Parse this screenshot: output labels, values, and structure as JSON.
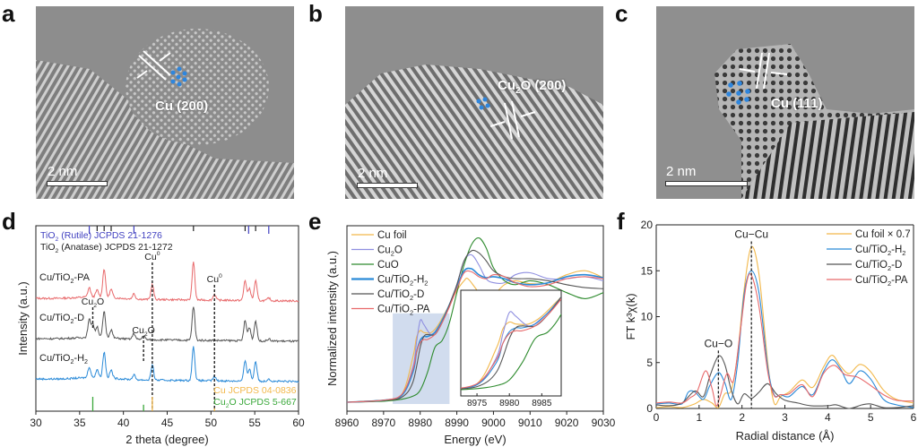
{
  "figure": {
    "panels": {
      "a": {
        "letter": "a",
        "annotation": "Cu (200)",
        "scale_bar": "2 nm",
        "lattice_dots_color": "#2e86de"
      },
      "b": {
        "letter": "b",
        "annotation_main": "Cu",
        "annotation_sub": "2",
        "annotation_tail": "O (200)",
        "scale_bar": "2 nm",
        "lattice_dots_color": "#2e86de"
      },
      "c": {
        "letter": "c",
        "annotation": "Cu (111)",
        "scale_bar": "2 nm",
        "lattice_dots_color": "#2e86de"
      },
      "d": {
        "letter": "d"
      },
      "e": {
        "letter": "e"
      },
      "f": {
        "letter": "f"
      }
    }
  },
  "chart_data": [
    {
      "id": "d",
      "type": "line",
      "title": "",
      "xlabel": "2 theta (degree)",
      "ylabel": "Intensity (a.u.)",
      "xlim": [
        30,
        60
      ],
      "xticks": [
        30,
        35,
        40,
        45,
        50,
        55,
        60
      ],
      "reference_header": [
        {
          "text": "TiO",
          "sub": "2",
          "tail": " (Rutile)  JCPDS 21-1276",
          "color": "#4040c0"
        },
        {
          "text": "TiO",
          "sub": "2",
          "tail": " (Anatase) JCPDS 21-1272",
          "color": "#222222"
        }
      ],
      "rutile_ticks": [
        36.1,
        41.2,
        54.3,
        56.6
      ],
      "anatase_ticks": [
        37.0,
        37.8,
        38.6,
        48.0,
        53.9,
        55.1
      ],
      "series": [
        {
          "name": "Cu/TiO2-PA",
          "label": "Cu/TiO",
          "sub": "2",
          "tail": "-PA",
          "color": "#e8696b",
          "offset": 2.0,
          "peaks": [
            [
              36.1,
              0.35
            ],
            [
              37.0,
              0.25
            ],
            [
              37.8,
              1.05
            ],
            [
              38.6,
              0.3
            ],
            [
              41.2,
              0.2
            ],
            [
              43.3,
              0.55
            ],
            [
              48.0,
              1.4
            ],
            [
              50.4,
              0.22
            ],
            [
              53.9,
              0.75
            ],
            [
              54.4,
              0.45
            ],
            [
              55.1,
              0.75
            ],
            [
              56.6,
              0.1
            ]
          ]
        },
        {
          "name": "Cu/TiO2-D",
          "label": "Cu/TiO",
          "sub": "2",
          "tail": "-D",
          "color": "#555555",
          "offset": 1.0,
          "peaks": [
            [
              36.1,
              0.65
            ],
            [
              36.5,
              0.5
            ],
            [
              37.0,
              0.4
            ],
            [
              37.8,
              0.95
            ],
            [
              38.6,
              0.3
            ],
            [
              41.2,
              0.22
            ],
            [
              42.3,
              0.15
            ],
            [
              48.0,
              1.25
            ],
            [
              53.9,
              0.75
            ],
            [
              54.4,
              0.5
            ],
            [
              55.1,
              0.75
            ],
            [
              56.6,
              0.08
            ]
          ]
        },
        {
          "name": "Cu/TiO2-H2",
          "label": "Cu/TiO",
          "sub": "2",
          "tail": "-H",
          "sub2": "2",
          "color": "#2a8ad8",
          "offset": 0.0,
          "peaks": [
            [
              36.1,
              0.4
            ],
            [
              37.0,
              0.3
            ],
            [
              37.8,
              0.95
            ],
            [
              38.6,
              0.3
            ],
            [
              41.2,
              0.18
            ],
            [
              43.3,
              0.55
            ],
            [
              48.0,
              1.25
            ],
            [
              50.4,
              0.15
            ],
            [
              53.9,
              0.75
            ],
            [
              54.4,
              0.45
            ],
            [
              55.1,
              0.75
            ],
            [
              56.6,
              0.1
            ]
          ]
        }
      ],
      "annotations": [
        {
          "text": "Cu",
          "sup": "0",
          "x": 43.3
        },
        {
          "text": "Cu",
          "sup": "0",
          "x": 50.4
        },
        {
          "text": "Cu",
          "sub": "2",
          "tail": "O",
          "x": 36.5
        },
        {
          "text": "Cu",
          "sub": "2",
          "tail": "O",
          "x": 42.3
        }
      ],
      "reference_lines": [
        {
          "name": "Cu JCPDS 04-0836",
          "label": "Cu JCPDS 04-0836",
          "color": "#f2b84b",
          "positions": [
            43.3,
            50.4
          ],
          "heights": [
            1.0,
            0.2
          ]
        },
        {
          "name": "Cu2O JCPDS 5-667",
          "label": "Cu",
          "sub": "2",
          "tail": "O JCPDS 5-667",
          "color": "#3aa83a",
          "positions": [
            36.5,
            42.3
          ],
          "heights": [
            1.0,
            0.45
          ]
        }
      ]
    },
    {
      "id": "e",
      "type": "line",
      "title": "",
      "xlabel": "Energy (eV)",
      "ylabel": "Normalized intensity (a.u.)",
      "xlim": [
        8960,
        9030
      ],
      "xticks": [
        8960,
        8970,
        8980,
        8990,
        9000,
        9010,
        9020,
        9030
      ],
      "ylim": [
        -0.05,
        1.7
      ],
      "legend": "top-left",
      "highlight_box": [
        8972.5,
        8988,
        "#c5d3ea"
      ],
      "series": [
        {
          "name": "Cu foil",
          "label": "Cu foil",
          "color": "#f2b84b",
          "x": [
            8960,
            8970,
            8975,
            8978,
            8979,
            8980,
            8981,
            8983,
            8985,
            8988,
            8990,
            8992,
            8993,
            8995,
            8997,
            9000,
            9003,
            9006,
            9010,
            9015,
            9020,
            9025,
            9030
          ],
          "y": [
            0.0,
            0.02,
            0.08,
            0.45,
            0.65,
            0.72,
            0.7,
            0.7,
            0.78,
            0.98,
            1.12,
            1.22,
            1.24,
            1.15,
            1.06,
            1.08,
            1.18,
            1.22,
            1.19,
            1.2,
            1.28,
            1.32,
            1.25
          ]
        },
        {
          "name": "Cu2O",
          "label": "Cu",
          "sub": "2",
          "tail": "O",
          "color": "#8f8fe0",
          "x": [
            8960,
            8970,
            8975,
            8978,
            8979,
            8980,
            8981,
            8983,
            8985,
            8988,
            8990,
            8992,
            8994,
            8996,
            8998,
            9000,
            9003,
            9006,
            9010,
            9015,
            9020,
            9025,
            9030
          ],
          "y": [
            0.0,
            0.02,
            0.07,
            0.35,
            0.6,
            0.82,
            0.78,
            0.68,
            0.76,
            0.96,
            1.18,
            1.42,
            1.48,
            1.38,
            1.24,
            1.2,
            1.2,
            1.28,
            1.3,
            1.24,
            1.24,
            1.26,
            1.22
          ]
        },
        {
          "name": "CuO",
          "label": "CuO",
          "color": "#2e8b2e",
          "x": [
            8960,
            8970,
            8975,
            8978,
            8980,
            8982,
            8984,
            8986,
            8988,
            8990,
            8992,
            8994,
            8996,
            8998,
            9000,
            9003,
            9006,
            9010,
            9015,
            9020,
            9025,
            9030
          ],
          "y": [
            0.0,
            0.01,
            0.03,
            0.06,
            0.12,
            0.3,
            0.55,
            0.62,
            0.8,
            1.1,
            1.38,
            1.58,
            1.65,
            1.55,
            1.35,
            1.22,
            1.18,
            1.22,
            1.18,
            1.1,
            1.04,
            1.1
          ]
        },
        {
          "name": "Cu/TiO2-H2",
          "label": "Cu/TiO",
          "sub": "2",
          "tail": "-H",
          "sub2": "2",
          "color": "#2a8ad8",
          "x": [
            8960,
            8970,
            8975,
            8978,
            8979,
            8980,
            8981,
            8982,
            8984,
            8986,
            8988,
            8990,
            8992,
            8994,
            8996,
            8998,
            9000,
            9003,
            9006,
            9010,
            9015,
            9020,
            9025,
            9030
          ],
          "y": [
            0.0,
            0.02,
            0.07,
            0.3,
            0.5,
            0.62,
            0.66,
            0.66,
            0.7,
            0.82,
            0.98,
            1.16,
            1.32,
            1.34,
            1.28,
            1.25,
            1.26,
            1.24,
            1.2,
            1.18,
            1.2,
            1.26,
            1.28,
            1.25
          ]
        },
        {
          "name": "Cu/TiO2-D",
          "label": "Cu/TiO",
          "sub": "2",
          "tail": "-D",
          "color": "#555555",
          "x": [
            8960,
            8970,
            8975,
            8978,
            8980,
            8981,
            8982,
            8984,
            8986,
            8988,
            8990,
            8992,
            8994,
            8996,
            8998,
            9000,
            9003,
            9006,
            9010,
            9015,
            9020,
            9025,
            9030
          ],
          "y": [
            0.0,
            0.02,
            0.05,
            0.2,
            0.55,
            0.66,
            0.68,
            0.68,
            0.8,
            0.98,
            1.18,
            1.42,
            1.52,
            1.5,
            1.42,
            1.32,
            1.26,
            1.24,
            1.24,
            1.22,
            1.18,
            1.15,
            1.14
          ]
        },
        {
          "name": "Cu/TiO2-PA",
          "label": "Cu/TiO",
          "sub": "2",
          "tail": "-PA",
          "color": "#e8696b",
          "x": [
            8960,
            8970,
            8975,
            8978,
            8979,
            8980,
            8981,
            8982,
            8984,
            8986,
            8988,
            8990,
            8992,
            8994,
            8996,
            8998,
            9000,
            9003,
            9006,
            9010,
            9015,
            9020,
            9025,
            9030
          ],
          "y": [
            0.0,
            0.02,
            0.08,
            0.33,
            0.5,
            0.6,
            0.63,
            0.63,
            0.68,
            0.8,
            0.96,
            1.14,
            1.3,
            1.31,
            1.26,
            1.24,
            1.28,
            1.26,
            1.2,
            1.16,
            1.18,
            1.24,
            1.26,
            1.24
          ]
        }
      ],
      "inset": {
        "xlim": [
          8972.5,
          8988
        ],
        "xticks": [
          8975,
          8980,
          8985
        ]
      }
    },
    {
      "id": "f",
      "type": "line",
      "title": "",
      "xlabel": "Radial distance (Å)",
      "ylabel": "FT k³χ(k)",
      "xlim": [
        0,
        6
      ],
      "ylim": [
        0,
        20
      ],
      "xticks": [
        0,
        1,
        2,
        3,
        4,
        5,
        6
      ],
      "yticks": [
        0,
        5,
        10,
        15,
        20
      ],
      "legend": "top-right",
      "annotations": [
        {
          "text": "Cu−Cu",
          "x": 2.22,
          "y": 18.2
        },
        {
          "text": "Cu−O",
          "x": 1.45,
          "y": 6.3
        }
      ],
      "series": [
        {
          "name": "Cu foil × 0.7",
          "label": "Cu foil × 0.7",
          "color": "#f2b84b",
          "x": [
            0,
            0.3,
            0.6,
            0.9,
            1.1,
            1.3,
            1.45,
            1.6,
            1.75,
            1.9,
            2.05,
            2.22,
            2.4,
            2.6,
            2.75,
            2.9,
            3.1,
            3.4,
            3.65,
            3.9,
            4.1,
            4.3,
            4.5,
            4.75,
            5.0,
            5.3,
            5.6,
            6.0
          ],
          "y": [
            0.1,
            0.2,
            0.1,
            0.5,
            1.0,
            0.6,
            0.1,
            1.6,
            2.0,
            6.0,
            13.0,
            17.6,
            14.5,
            5.0,
            0.6,
            1.3,
            1.8,
            3.1,
            2.3,
            4.5,
            5.8,
            4.6,
            3.8,
            4.8,
            4.0,
            2.0,
            1.0,
            0.6
          ]
        },
        {
          "name": "Cu/TiO2-H2",
          "label": "Cu/TiO",
          "sub": "2",
          "tail": "-H",
          "sub2": "2",
          "color": "#2a8ad8",
          "x": [
            0,
            0.3,
            0.6,
            0.75,
            0.9,
            1.1,
            1.25,
            1.45,
            1.6,
            1.75,
            1.9,
            2.05,
            2.22,
            2.4,
            2.6,
            2.75,
            2.9,
            3.1,
            3.4,
            3.65,
            3.9,
            4.1,
            4.3,
            4.5,
            4.75,
            5.0,
            5.3,
            5.6,
            6.0
          ],
          "y": [
            0.5,
            0.6,
            0.5,
            1.8,
            1.8,
            1.0,
            2.5,
            3.9,
            2.8,
            1.0,
            5.0,
            12.5,
            15.0,
            12.5,
            4.5,
            1.5,
            1.5,
            1.3,
            2.4,
            1.5,
            4.0,
            5.3,
            4.3,
            2.7,
            4.1,
            3.2,
            1.0,
            0.4,
            0.1
          ]
        },
        {
          "name": "Cu/TiO2-D",
          "label": "Cu/TiO",
          "sub": "2",
          "tail": "-D",
          "color": "#555555",
          "x": [
            0,
            0.3,
            0.6,
            0.9,
            1.1,
            1.25,
            1.45,
            1.6,
            1.75,
            1.9,
            2.05,
            2.22,
            2.4,
            2.6,
            2.8,
            3.0,
            3.3,
            3.6,
            4.0,
            4.2,
            4.5,
            4.8,
            5.0,
            5.3,
            5.6,
            6.0
          ],
          "y": [
            0.4,
            0.3,
            0.6,
            1.9,
            1.3,
            3.5,
            5.7,
            4.8,
            2.0,
            0.5,
            1.6,
            1.1,
            1.8,
            2.7,
            1.6,
            0.9,
            0.6,
            0.3,
            0.3,
            0.4,
            0.0,
            0.4,
            0.5,
            0.1,
            0.1,
            0.3
          ]
        },
        {
          "name": "Cu/TiO2-PA",
          "label": "Cu/TiO",
          "sub": "2",
          "tail": "-PA",
          "color": "#e8696b",
          "x": [
            0,
            0.3,
            0.6,
            0.8,
            0.95,
            1.15,
            1.3,
            1.4,
            1.5,
            1.65,
            1.8,
            1.95,
            2.1,
            2.22,
            2.4,
            2.6,
            2.75,
            2.9,
            3.1,
            3.4,
            3.65,
            3.9,
            4.15,
            4.4,
            4.7,
            5.0,
            5.3,
            5.6,
            6.0
          ],
          "y": [
            0.6,
            0.7,
            0.6,
            1.2,
            1.8,
            4.1,
            2.2,
            0.3,
            1.5,
            3.8,
            3.0,
            8.0,
            13.5,
            14.5,
            11.0,
            4.0,
            1.4,
            1.5,
            1.6,
            2.6,
            1.3,
            3.8,
            4.7,
            3.7,
            3.4,
            2.5,
            1.5,
            0.9,
            0.8
          ]
        }
      ]
    }
  ]
}
